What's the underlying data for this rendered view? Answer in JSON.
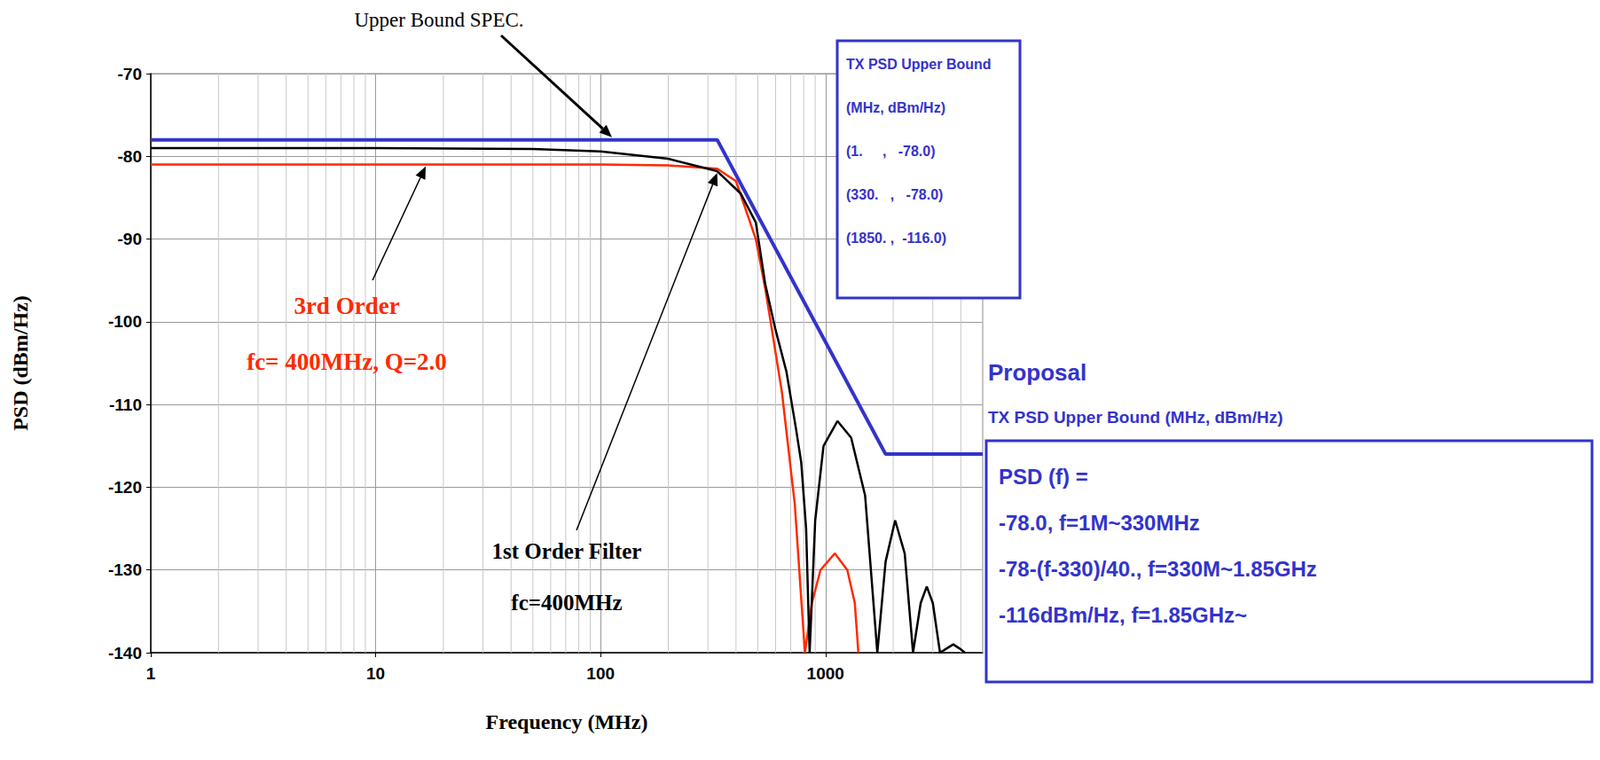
{
  "chart_data": {
    "type": "line",
    "xlabel": "Frequency (MHz)",
    "ylabel": "PSD (dBm/Hz)",
    "log": "x",
    "grid": true,
    "xlim": [
      1,
      5000
    ],
    "xticks": [
      1,
      10,
      100,
      1000
    ],
    "ylim": [
      -140,
      -70
    ],
    "yticks": [
      -140,
      -130,
      -120,
      -110,
      -100,
      -90,
      -80,
      -70
    ],
    "series": [
      {
        "name": "Upper Bound SPEC.",
        "color": "#3333cc",
        "line_style": "solid",
        "x": [
          1,
          330,
          1850,
          5000
        ],
        "values": [
          -78,
          -78,
          -116,
          -116
        ]
      },
      {
        "name": "1st Order Filter",
        "color": "#000000",
        "line_style": "solid",
        "x": [
          1,
          10,
          50,
          100,
          200,
          330,
          420,
          490,
          540,
          600,
          670,
          740,
          780,
          820,
          850,
          900,
          980,
          1130,
          1300,
          1500,
          1700,
          1850,
          2040,
          2250,
          2450,
          2650,
          2820,
          3000,
          3230,
          3450,
          3700,
          3950,
          4170
        ],
        "values": [
          -79,
          -79,
          -79.1,
          -79.4,
          -80.3,
          -81.8,
          -84.5,
          -88,
          -95.5,
          -101,
          -106,
          -113,
          -117,
          -125,
          -140,
          -124,
          -115,
          -112,
          -114,
          -121,
          -140,
          -129,
          -124,
          -128,
          -140,
          -134,
          -132,
          -134,
          -140,
          -139.5,
          -139,
          -139.5,
          -140
        ]
      },
      {
        "name": "3rd Order",
        "color": "#ff2a00",
        "line_style": "solid",
        "x": [
          1,
          100,
          200,
          330,
          400,
          490,
          540,
          640,
          730,
          810,
          870,
          950,
          1100,
          1250,
          1350,
          1400
        ],
        "values": [
          -81,
          -81,
          -81.1,
          -81.5,
          -83,
          -90,
          -96,
          -108.5,
          -122,
          -140,
          -134,
          -130,
          -128,
          -130,
          -134,
          -140
        ]
      }
    ],
    "annotations": [
      "fc= 400MHz, Q=2.0",
      "fc=400MHz"
    ],
    "spec_table": {
      "title": [
        "TX PSD Upper Bound",
        "(MHz, dBm/Hz)"
      ],
      "rows": [
        "(1.     ,   -78.0)",
        "(330.   ,   -78.0)",
        "(1850. ,  -116.0)"
      ]
    },
    "proposal": {
      "heading": "Proposal",
      "subheading": "TX PSD Upper Bound (MHz, dBm/Hz)",
      "lines": [
        "PSD (f) =",
        "-78.0, f=1M~330MHz",
        "-78-(f-330)/40., f=330M~1.85GHz",
        "-116dBm/Hz, f=1.85GHz~"
      ]
    }
  }
}
